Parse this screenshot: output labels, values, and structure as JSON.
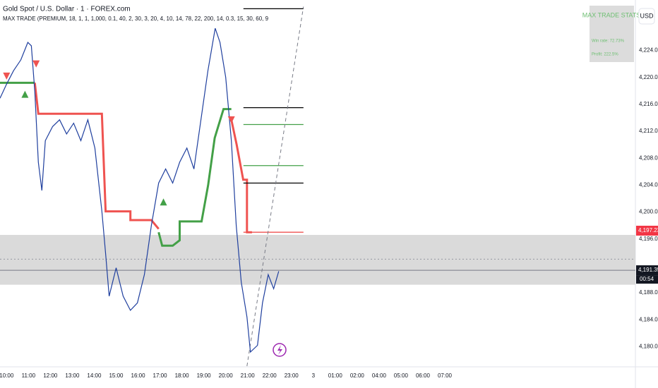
{
  "chart_data": {
    "type": "line",
    "title": "Gold Spot / U.S. Dollar · 1 · FOREX.com",
    "subtitle": "MAX TRADE (PREMIUM, 18, 1, 1, 1,000, 0.1, 40, 2, 30, 3, 20, 4, 10, 14, 78, 22, 200, 14, 0.3, 15, 30, 60, 9",
    "currency": "USD",
    "xlim": [
      9.7,
      38.7
    ],
    "ylim": [
      4177,
      4231.5
    ],
    "xticks": [
      {
        "value": 10,
        "label": "10:00"
      },
      {
        "value": 11,
        "label": "11:00"
      },
      {
        "value": 12,
        "label": "12:00"
      },
      {
        "value": 13,
        "label": "13:00"
      },
      {
        "value": 14,
        "label": "14:00"
      },
      {
        "value": 15,
        "label": "15:00"
      },
      {
        "value": 16,
        "label": "16:00"
      },
      {
        "value": 17,
        "label": "17:00"
      },
      {
        "value": 18,
        "label": "18:00"
      },
      {
        "value": 19,
        "label": "19:00"
      },
      {
        "value": 20,
        "label": "20:00"
      },
      {
        "value": 21,
        "label": "21:00"
      },
      {
        "value": 22,
        "label": "22:00"
      },
      {
        "value": 23,
        "label": "23:00"
      },
      {
        "value": 24,
        "label": "3"
      },
      {
        "value": 25,
        "label": "01:00"
      },
      {
        "value": 26,
        "label": "02:00"
      },
      {
        "value": 27,
        "label": "04:00"
      },
      {
        "value": 28,
        "label": "05:00"
      },
      {
        "value": 29,
        "label": "06:00"
      },
      {
        "value": 30,
        "label": "07:00"
      }
    ],
    "yticks": [
      {
        "value": 4180,
        "label": "4,180.00"
      },
      {
        "value": 4184,
        "label": "4,184.00"
      },
      {
        "value": 4188,
        "label": "4,188.00"
      },
      {
        "value": 4196,
        "label": "4,196.00"
      },
      {
        "value": 4200,
        "label": "4,200.00"
      },
      {
        "value": 4204,
        "label": "4,204.00"
      },
      {
        "value": 4208,
        "label": "4,208.00"
      },
      {
        "value": 4212,
        "label": "4,212.00"
      },
      {
        "value": 4216,
        "label": "4,216.00"
      },
      {
        "value": 4220,
        "label": "4,220.00"
      },
      {
        "value": 4224,
        "label": "4,224.00"
      }
    ],
    "price": {
      "color": "#1f3f9e",
      "x": [
        9.7,
        10,
        10.32,
        10.65,
        10.97,
        11.13,
        11.29,
        11.45,
        11.61,
        11.77,
        12.1,
        12.42,
        12.74,
        13.06,
        13.39,
        13.71,
        14.03,
        14.35,
        14.52,
        14.68,
        15,
        15.32,
        15.65,
        15.97,
        16.29,
        16.61,
        16.94,
        17.26,
        17.58,
        17.9,
        18.23,
        18.55,
        18.87,
        19.19,
        19.52,
        19.74,
        20,
        20.26,
        20.48,
        20.71,
        20.97,
        21.13,
        21.45,
        21.68,
        21.94,
        22.19,
        22.42
      ],
      "values": [
        4216.9,
        4219,
        4221,
        4222.6,
        4225.2,
        4224.7,
        4217.9,
        4207.4,
        4203.2,
        4210.6,
        4212.7,
        4213.7,
        4211.6,
        4213.2,
        4210.6,
        4213.7,
        4209.5,
        4200.1,
        4193.8,
        4187.5,
        4191.7,
        4187.5,
        4185.4,
        4186.5,
        4190.7,
        4198,
        4204.3,
        4206.4,
        4204.3,
        4207.4,
        4209.5,
        4206.4,
        4213.7,
        4221,
        4227.3,
        4225.2,
        4220,
        4210.6,
        4198,
        4189.6,
        4184.4,
        4179.2,
        4180.2,
        4186.5,
        4190.7,
        4188.6,
        4191.2
      ]
    },
    "stops": [
      {
        "color": "#43a047",
        "x": [
          9.7,
          11.29
        ],
        "values": [
          4219.2,
          4219.2
        ]
      },
      {
        "color": "#ef5350",
        "x": [
          11.29,
          11.45,
          14.35,
          14.52,
          15.65,
          15.65,
          16.61,
          16.94
        ],
        "values": [
          4219.2,
          4214.6,
          4214.6,
          4200.1,
          4200.1,
          4198.8,
          4198.8,
          4197.5
        ]
      },
      {
        "color": "#43a047",
        "x": [
          16.94,
          17.1,
          17.58,
          17.9,
          17.9,
          18.9,
          19.2,
          19.5,
          19.9,
          20.26
        ],
        "values": [
          4197,
          4195,
          4195,
          4195.8,
          4198.6,
          4198.6,
          4204,
          4211,
          4215.3,
          4215.3
        ]
      },
      {
        "color": "#ef5350",
        "x": [
          20.26,
          20.5,
          20.8,
          20.97,
          20.97,
          21.2
        ],
        "values": [
          4213.7,
          4210,
          4204.8,
          4204.8,
          4197,
          4197
        ]
      }
    ],
    "levels": [
      {
        "value": 4230.2,
        "color": "#000000",
        "x": [
          20.81,
          23.55
        ]
      },
      {
        "value": 4215.5,
        "color": "#000000",
        "x": [
          20.81,
          23.55
        ]
      },
      {
        "value": 4213,
        "color": "#43a047",
        "x": [
          20.81,
          23.55
        ]
      },
      {
        "value": 4206.9,
        "color": "#43a047",
        "x": [
          20.81,
          23.55
        ]
      },
      {
        "value": 4204.3,
        "color": "#000000",
        "x": [
          20.81,
          23.55
        ]
      },
      {
        "value": 4197,
        "color": "#ef5350",
        "x": [
          20.81,
          23.55
        ]
      }
    ],
    "target_line": {
      "x": [
        20.97,
        23.55
      ],
      "values": [
        4177.1,
        4230.5
      ]
    },
    "signals": [
      {
        "dir": "down",
        "x": 10,
        "value": 4220.2,
        "color": "#ef5350"
      },
      {
        "dir": "down",
        "x": 11.35,
        "value": 4222,
        "color": "#ef5350"
      },
      {
        "dir": "up",
        "x": 10.84,
        "value": 4217.5,
        "color": "#43a047"
      },
      {
        "dir": "up",
        "x": 17.16,
        "value": 4201.5,
        "color": "#43a047"
      },
      {
        "dir": "down",
        "x": 20.26,
        "value": 4213.7,
        "color": "#ef5350"
      }
    ],
    "zone": [
      4189.2,
      4196.6
    ],
    "dotted_level": 4193,
    "price_tags": [
      {
        "value": 4197.23,
        "label": "4,197.23",
        "color": "#f23645"
      },
      {
        "value": 4191.35,
        "label": "4,191.35",
        "color": "#131722"
      }
    ],
    "countdown": "00:54",
    "stats": {
      "title": "MAX TRADE STATS",
      "lines": [
        "Win rate: 72.73%",
        "Profit: 222.5%"
      ]
    }
  }
}
